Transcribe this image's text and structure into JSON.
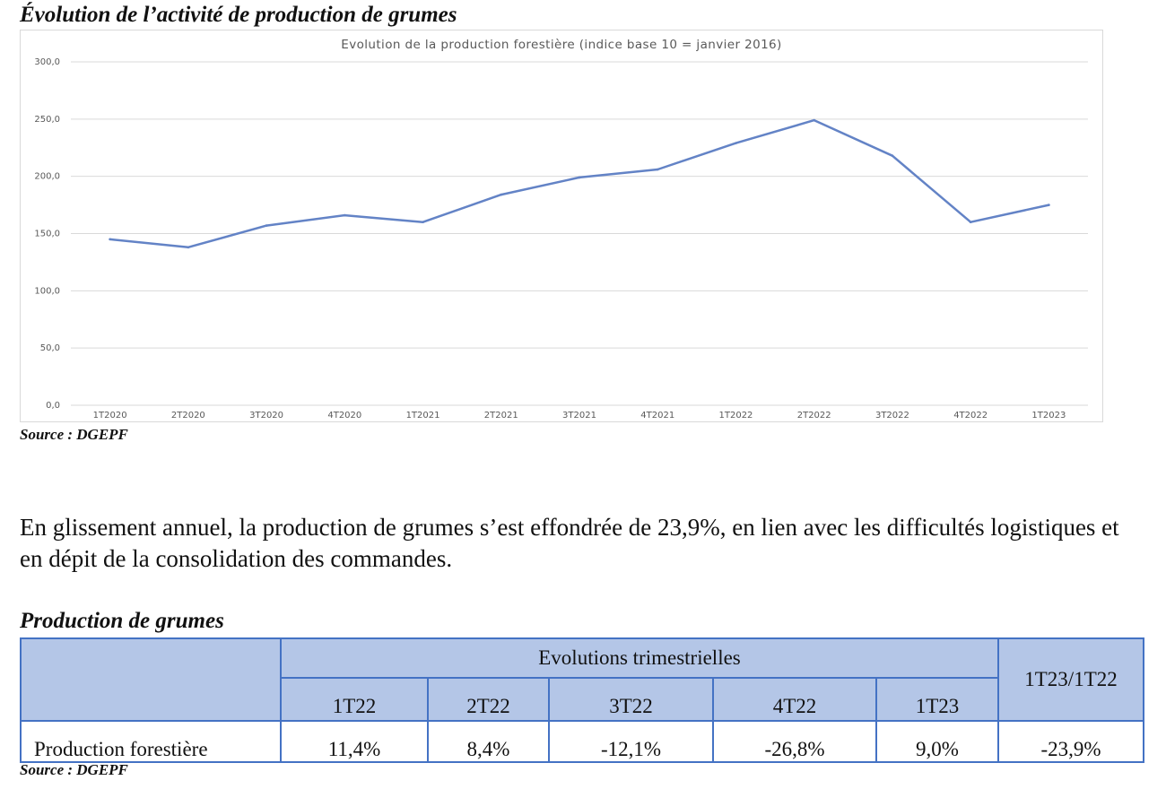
{
  "doc": {
    "heading1": "Évolution de l’activité de production de grumes",
    "source1": "Source : DGEPF",
    "paragraph": "En glissement annuel, la production de grumes s’est effondrée de 23,9%, en lien avec les difficultés logistiques et en dépit de la consolidation des commandes.",
    "heading2": "Production de grumes",
    "source2": "Source : DGEPF"
  },
  "chart_data": {
    "type": "line",
    "title": "Evolution de la production forestière (indice base 10 = janvier 2016)",
    "categories": [
      "1T2020",
      "2T2020",
      "3T2020",
      "4T2020",
      "1T2021",
      "2T2021",
      "3T2021",
      "4T2021",
      "1T2022",
      "2T2022",
      "3T2022",
      "4T2022",
      "1T2023"
    ],
    "series": [
      {
        "values": [
          145,
          138,
          157,
          166,
          160,
          184,
          199,
          206,
          229,
          249,
          218,
          160,
          175
        ],
        "color": "#6383c6"
      }
    ],
    "yticks": [
      "0,0",
      "50,0",
      "100,0",
      "150,0",
      "200,0",
      "250,0",
      "300,0"
    ],
    "ylim": [
      0,
      300
    ],
    "grid": true,
    "legend": "none"
  },
  "table": {
    "group_header": "Evolutions trimestrielles",
    "annual_header": "1T23/1T22",
    "quarters": [
      "1T22",
      "2T22",
      "3T22",
      "4T22",
      "1T23"
    ],
    "row_label": "Production forestière",
    "values": [
      "11,4%",
      "8,4%",
      "-12,1%",
      "-26,8%",
      "9,0%"
    ],
    "annual_value": "-23,9%",
    "border_color": "#4472c4",
    "header_fill": "#b4c6e7"
  }
}
